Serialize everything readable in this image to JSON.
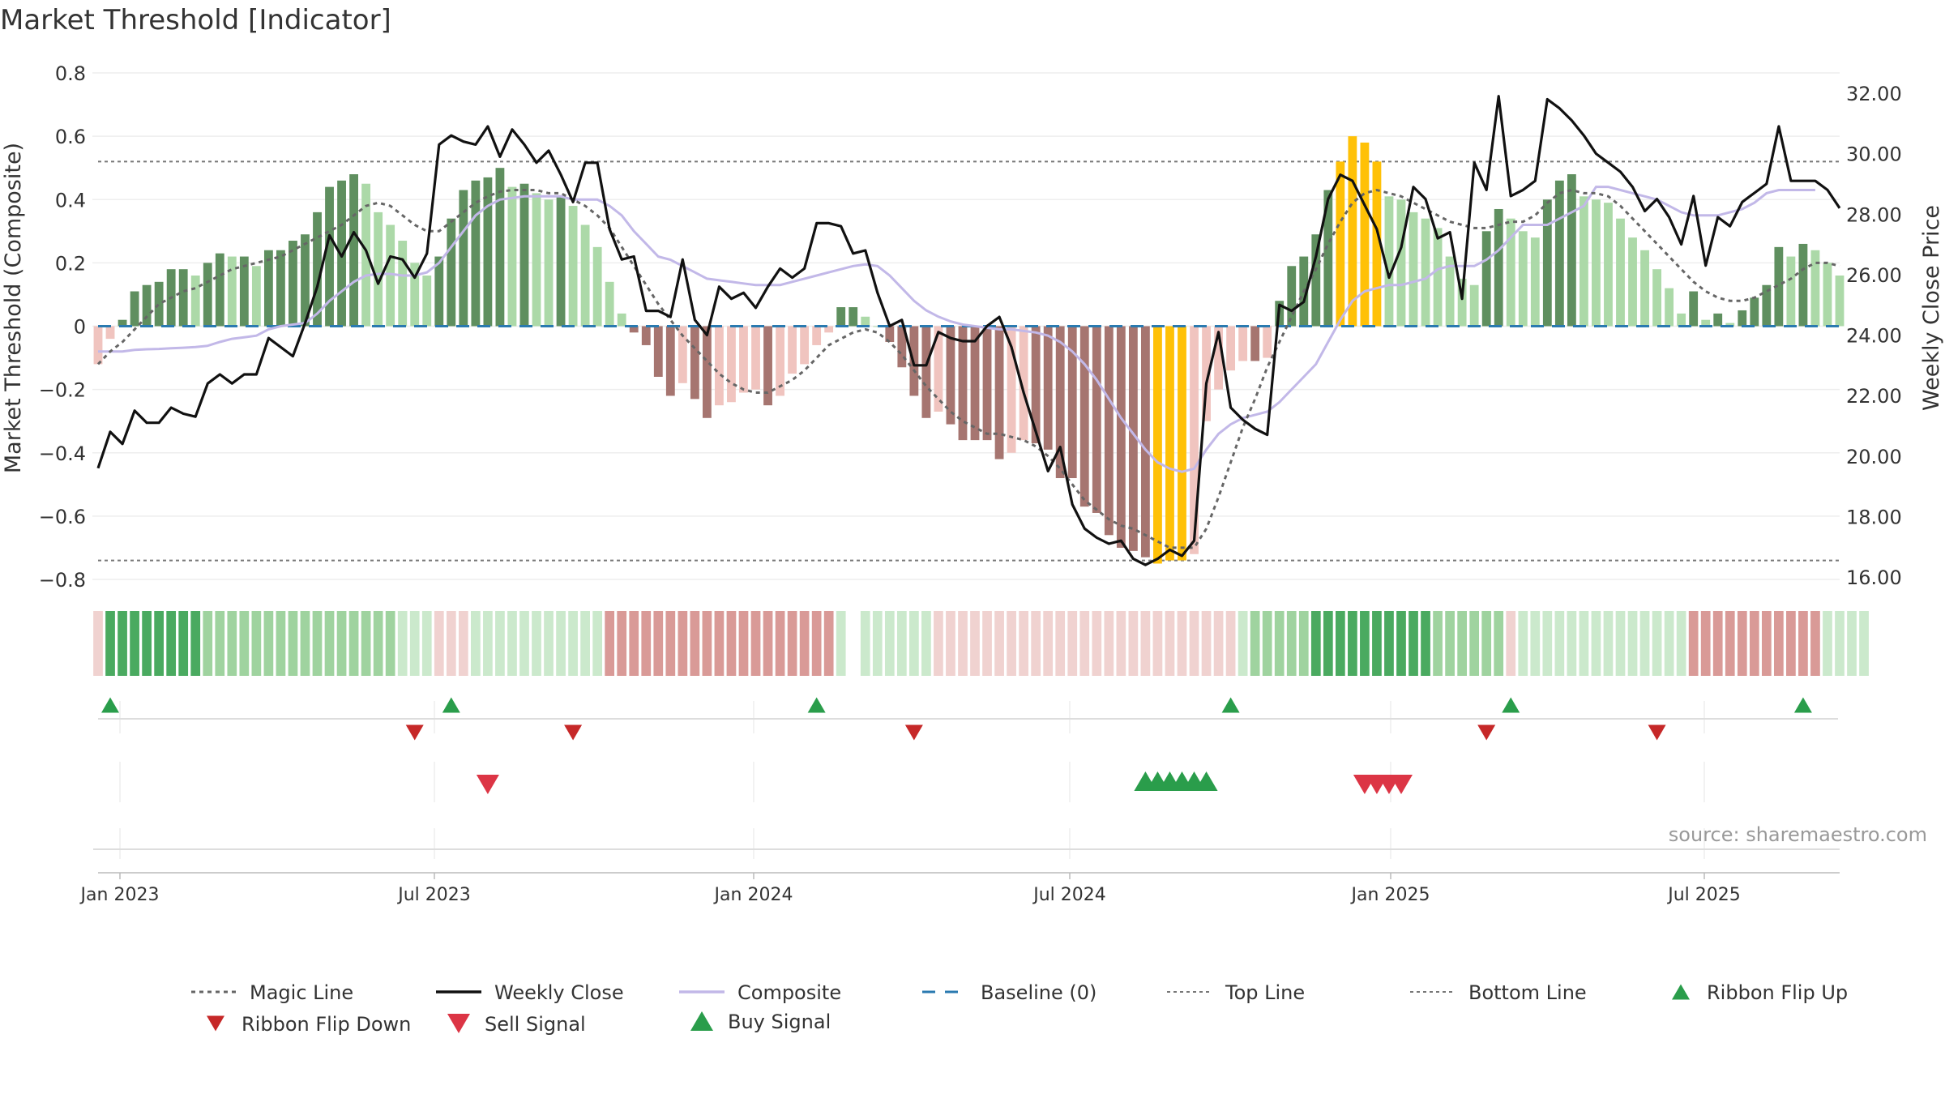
{
  "chart_data": {
    "type": "bar",
    "title": "Market Threshold [Indicator]",
    "ylabel": "Market Threshold (Composite)",
    "y2label": "Weekly Close Price",
    "ylim": [
      -0.8,
      0.8
    ],
    "y2lim": [
      16,
      32
    ],
    "yticks": [
      "0.8",
      "0.6",
      "0.4",
      "0.2",
      "0",
      "−0.2",
      "−0.4",
      "−0.6",
      "−0.8"
    ],
    "y2ticks": [
      "32.00",
      "30.00",
      "28.00",
      "26.00",
      "24.00",
      "22.00",
      "20.00",
      "18.00",
      "16.00"
    ],
    "xticks": [
      "Jan 2023",
      "Jul 2023",
      "Jan 2024",
      "Jul 2024",
      "Jan 2025",
      "Jul 2025"
    ],
    "top_line": 0.52,
    "bottom_line": -0.74,
    "source": "source: sharemaestro.com",
    "composite_bars": [
      -0.12,
      -0.04,
      0.02,
      0.11,
      0.13,
      0.14,
      0.18,
      0.18,
      0.16,
      0.2,
      0.23,
      0.22,
      0.22,
      0.19,
      0.24,
      0.24,
      0.27,
      0.29,
      0.36,
      0.44,
      0.46,
      0.48,
      0.45,
      0.36,
      0.32,
      0.27,
      0.2,
      0.16,
      0.22,
      0.34,
      0.43,
      0.46,
      0.47,
      0.5,
      0.44,
      0.45,
      0.42,
      0.4,
      0.41,
      0.38,
      0.32,
      0.25,
      0.14,
      0.04,
      -0.02,
      -0.06,
      -0.16,
      -0.22,
      -0.18,
      -0.23,
      -0.29,
      -0.25,
      -0.24,
      -0.21,
      -0.2,
      -0.25,
      -0.22,
      -0.15,
      -0.12,
      -0.06,
      -0.02,
      0.06,
      0.06,
      0.03,
      0.0,
      -0.05,
      -0.13,
      -0.22,
      -0.29,
      -0.27,
      -0.31,
      -0.36,
      -0.36,
      -0.36,
      -0.42,
      -0.4,
      -0.36,
      -0.37,
      -0.39,
      -0.48,
      -0.48,
      -0.57,
      -0.59,
      -0.66,
      -0.7,
      -0.71,
      -0.73,
      -0.75,
      -0.74,
      -0.74,
      -0.72,
      -0.3,
      -0.2,
      -0.14,
      -0.11,
      -0.11,
      -0.1,
      0.08,
      0.19,
      0.22,
      0.29,
      0.43,
      0.52,
      0.6,
      0.58,
      0.52,
      0.41,
      0.4,
      0.36,
      0.34,
      0.31,
      0.22,
      0.15,
      0.13,
      0.3,
      0.37,
      0.34,
      0.3,
      0.28,
      0.4,
      0.46,
      0.48,
      0.41,
      0.4,
      0.39,
      0.34,
      0.28,
      0.24,
      0.18,
      0.12,
      0.04,
      0.11,
      0.02,
      0.04,
      0.01,
      0.05,
      0.09,
      0.13,
      0.25,
      0.22,
      0.26,
      0.24,
      0.2,
      0.16
    ],
    "weekly_close": [
      19.6,
      20.8,
      20.4,
      21.5,
      21.1,
      21.1,
      21.6,
      21.4,
      21.3,
      22.4,
      22.7,
      22.4,
      22.7,
      22.7,
      23.9,
      23.6,
      23.3,
      24.4,
      25.6,
      27.3,
      26.6,
      27.4,
      26.8,
      25.7,
      26.6,
      26.5,
      25.9,
      26.7,
      30.3,
      30.6,
      30.4,
      30.3,
      30.9,
      29.9,
      30.8,
      30.3,
      29.7,
      30.1,
      29.3,
      28.4,
      29.7,
      29.7,
      27.5,
      26.5,
      26.6,
      24.8,
      24.8,
      24.6,
      26.5,
      24.5,
      24.0,
      25.6,
      25.2,
      25.4,
      24.9,
      25.6,
      26.2,
      25.9,
      26.2,
      27.7,
      27.7,
      27.6,
      26.7,
      26.8,
      25.4,
      24.3,
      24.5,
      23.0,
      23.0,
      24.1,
      23.9,
      23.8,
      23.8,
      24.3,
      24.6,
      23.6,
      22.1,
      20.8,
      19.5,
      20.3,
      18.4,
      17.6,
      17.3,
      17.1,
      17.2,
      16.6,
      16.4,
      16.6,
      16.9,
      16.7,
      17.2,
      22.4,
      24.1,
      21.6,
      21.2,
      20.9,
      20.7,
      25.0,
      24.8,
      25.1,
      26.6,
      28.5,
      29.3,
      29.1,
      28.3,
      27.5,
      25.9,
      26.9,
      28.9,
      28.5,
      27.2,
      27.4,
      25.2,
      29.7,
      28.8,
      31.9,
      28.6,
      28.8,
      29.1,
      31.8,
      31.5,
      31.1,
      30.6,
      30.0,
      29.7,
      29.4,
      28.9,
      28.1,
      28.5,
      27.9,
      27.0,
      28.6,
      26.3,
      27.9,
      27.6,
      28.4,
      28.7,
      29.0,
      30.9,
      29.1,
      29.1,
      29.1,
      28.8,
      28.2
    ],
    "composite_line": [
      -0.08,
      -0.08,
      -0.08,
      -0.075,
      -0.073,
      -0.072,
      -0.07,
      -0.068,
      -0.066,
      -0.062,
      -0.05,
      -0.04,
      -0.035,
      -0.03,
      -0.01,
      0.0,
      0.005,
      0.01,
      0.04,
      0.08,
      0.11,
      0.14,
      0.16,
      0.165,
      0.165,
      0.16,
      0.16,
      0.17,
      0.2,
      0.25,
      0.3,
      0.35,
      0.38,
      0.4,
      0.405,
      0.41,
      0.41,
      0.41,
      0.41,
      0.4,
      0.4,
      0.4,
      0.38,
      0.35,
      0.3,
      0.26,
      0.22,
      0.21,
      0.19,
      0.17,
      0.15,
      0.145,
      0.14,
      0.135,
      0.13,
      0.13,
      0.13,
      0.14,
      0.15,
      0.16,
      0.17,
      0.18,
      0.19,
      0.195,
      0.19,
      0.16,
      0.12,
      0.08,
      0.05,
      0.03,
      0.015,
      0.005,
      0.0,
      -0.005,
      -0.01,
      -0.01,
      -0.015,
      -0.02,
      -0.03,
      -0.05,
      -0.08,
      -0.12,
      -0.17,
      -0.23,
      -0.29,
      -0.34,
      -0.39,
      -0.43,
      -0.45,
      -0.46,
      -0.45,
      -0.39,
      -0.34,
      -0.31,
      -0.29,
      -0.28,
      -0.27,
      -0.24,
      -0.2,
      -0.16,
      -0.12,
      -0.05,
      0.02,
      0.08,
      0.11,
      0.12,
      0.13,
      0.13,
      0.14,
      0.15,
      0.18,
      0.19,
      0.19,
      0.19,
      0.21,
      0.24,
      0.28,
      0.32,
      0.32,
      0.32,
      0.34,
      0.36,
      0.38,
      0.44,
      0.44,
      0.43,
      0.42,
      0.41,
      0.4,
      0.38,
      0.36,
      0.35,
      0.35,
      0.35,
      0.36,
      0.37,
      0.39,
      0.42,
      0.43,
      0.43,
      0.43,
      0.43
    ],
    "magic_line": [
      -0.12,
      -0.08,
      -0.05,
      -0.01,
      0.03,
      0.07,
      0.09,
      0.11,
      0.12,
      0.14,
      0.16,
      0.18,
      0.19,
      0.2,
      0.21,
      0.22,
      0.24,
      0.26,
      0.28,
      0.3,
      0.32,
      0.35,
      0.38,
      0.39,
      0.38,
      0.35,
      0.32,
      0.3,
      0.3,
      0.33,
      0.36,
      0.39,
      0.41,
      0.425,
      0.43,
      0.43,
      0.43,
      0.42,
      0.42,
      0.4,
      0.38,
      0.35,
      0.31,
      0.25,
      0.19,
      0.13,
      0.07,
      0.02,
      -0.03,
      -0.07,
      -0.11,
      -0.15,
      -0.18,
      -0.2,
      -0.21,
      -0.21,
      -0.19,
      -0.17,
      -0.14,
      -0.1,
      -0.06,
      -0.04,
      -0.02,
      -0.01,
      -0.02,
      -0.05,
      -0.09,
      -0.14,
      -0.19,
      -0.23,
      -0.27,
      -0.3,
      -0.32,
      -0.34,
      -0.34,
      -0.35,
      -0.36,
      -0.38,
      -0.41,
      -0.45,
      -0.5,
      -0.55,
      -0.58,
      -0.61,
      -0.63,
      -0.64,
      -0.66,
      -0.68,
      -0.7,
      -0.7,
      -0.7,
      -0.64,
      -0.54,
      -0.43,
      -0.32,
      -0.23,
      -0.13,
      -0.05,
      0.03,
      0.11,
      0.18,
      0.26,
      0.33,
      0.39,
      0.42,
      0.43,
      0.42,
      0.41,
      0.39,
      0.37,
      0.35,
      0.33,
      0.32,
      0.31,
      0.31,
      0.32,
      0.33,
      0.33,
      0.35,
      0.39,
      0.42,
      0.43,
      0.42,
      0.42,
      0.41,
      0.38,
      0.34,
      0.3,
      0.26,
      0.22,
      0.18,
      0.14,
      0.11,
      0.09,
      0.08,
      0.08,
      0.09,
      0.11,
      0.13,
      0.15,
      0.18,
      0.2,
      0.2,
      0.19
    ],
    "ribbon_levels": [
      -1,
      2,
      2,
      2,
      2,
      2,
      2,
      2,
      2,
      1,
      1,
      1,
      1,
      1,
      1,
      1,
      1,
      1,
      1,
      1,
      1,
      1,
      1,
      1,
      1,
      0,
      0,
      0,
      -1,
      -1,
      -1,
      0,
      0,
      0,
      0,
      0,
      0,
      0,
      0,
      0,
      0,
      0,
      -2,
      -2,
      -2,
      -2,
      -2,
      -2,
      -2,
      -2,
      -2,
      -2,
      -2,
      -2,
      -2,
      -2,
      -2,
      -2,
      -2,
      -2,
      -2,
      0,
      null,
      0,
      0,
      0,
      0,
      0,
      0,
      -1,
      -1,
      -1,
      -1,
      -1,
      -1,
      -1,
      -1,
      -1,
      -1,
      -1,
      -1,
      -1,
      -1,
      -1,
      -1,
      -1,
      -1,
      -1,
      -1,
      -1,
      -1,
      -1,
      -1,
      -1,
      0,
      1,
      1,
      1,
      1,
      1,
      2,
      2,
      2,
      2,
      2,
      2,
      2,
      2,
      2,
      2,
      1,
      1,
      1,
      1,
      1,
      1,
      -1,
      0,
      0,
      0,
      0,
      0,
      0,
      0,
      0,
      0,
      0,
      0,
      0,
      0,
      0,
      -2,
      -2,
      -2,
      -2,
      -2,
      -2,
      -2,
      -2,
      -2,
      -2,
      -2,
      0,
      0,
      0,
      0
    ],
    "ribbon_flip_up_idx": [
      1,
      29,
      59,
      93,
      116,
      140
    ],
    "ribbon_flip_down_idx": [
      26,
      39,
      67,
      114,
      128
    ],
    "sell_signal_idx": [
      32,
      104,
      105,
      106,
      107
    ],
    "buy_signal_idx": [
      86,
      87,
      88,
      89,
      90,
      91
    ],
    "legend": [
      "Magic Line",
      "Weekly Close",
      "Composite",
      "Baseline (0)",
      "Top Line",
      "Bottom Line",
      "Ribbon Flip Up",
      "Ribbon Flip Down",
      "Sell Signal",
      "Buy Signal"
    ]
  },
  "colors": {
    "bar_up_strong": "#5f8f5f",
    "bar_up_weak": "#acd9a8",
    "bar_down_strong": "#a67570",
    "bar_down_weak": "#f0c4bf",
    "bar_extreme": "#ffc107",
    "close": "#111111",
    "composite": "#c2b8e8",
    "magic": "#666666",
    "baseline": "#2a7ab0",
    "threshold": "#777777",
    "buy": "#2a9d4b",
    "sell": "#dc3545",
    "flip_down": "#c62828"
  }
}
